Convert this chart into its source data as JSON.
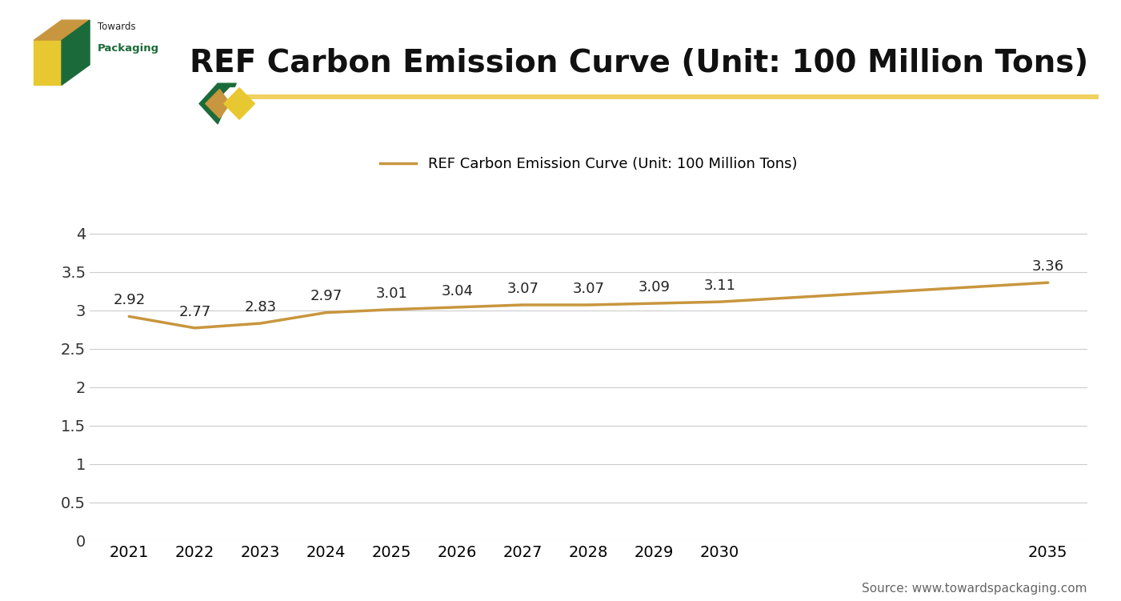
{
  "title": "REF Carbon Emission Curve (Unit: 100 Million Tons)",
  "legend_label": "REF Carbon Emission Curve (Unit: 100 Million Tons)",
  "years": [
    2021,
    2022,
    2023,
    2024,
    2025,
    2026,
    2027,
    2028,
    2029,
    2030,
    2035
  ],
  "values": [
    2.92,
    2.77,
    2.83,
    2.97,
    3.01,
    3.04,
    3.07,
    3.07,
    3.09,
    3.11,
    3.36
  ],
  "line_color": "#C8963E",
  "line_width": 2.5,
  "yticks": [
    0,
    0.5,
    1,
    1.5,
    2,
    2.5,
    3,
    3.5,
    4
  ],
  "ylim": [
    0,
    4.3
  ],
  "background_color": "#ffffff",
  "grid_color": "#cccccc",
  "title_fontsize": 28,
  "tick_fontsize": 14,
  "annotation_fontsize": 13,
  "legend_fontsize": 13,
  "source_text": "Source: www.towardspackaging.com",
  "header_line_color": "#F0D060",
  "logo_green": "#1B6B3A",
  "logo_tan": "#C8963E",
  "logo_gold": "#E8C830"
}
